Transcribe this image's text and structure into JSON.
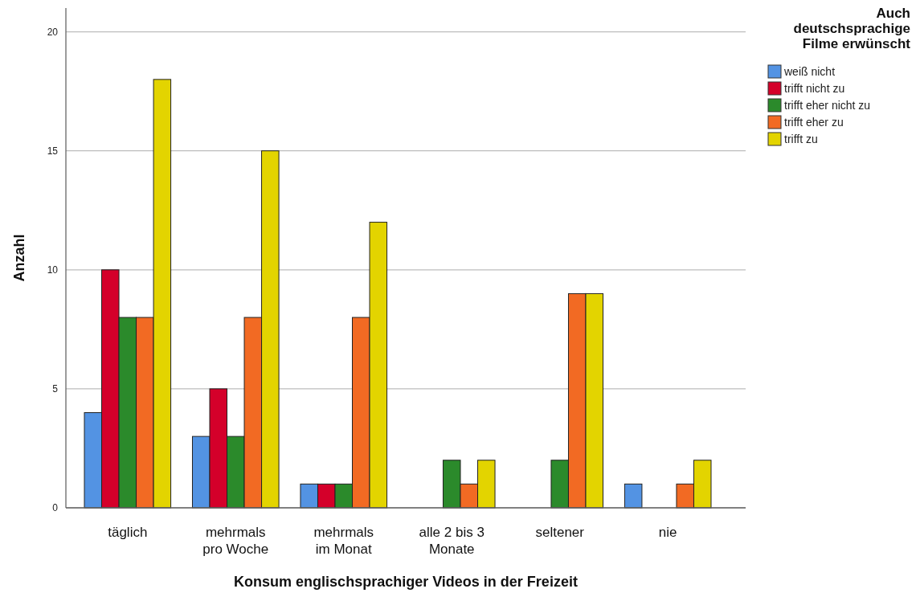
{
  "chart_data": {
    "type": "bar",
    "xlabel": "Konsum englischsprachiger Videos in der Freizeit",
    "ylabel": "Anzahl",
    "legend_title": "Auch deutschsprachige Filme erwünscht",
    "categories": [
      "täglich",
      "mehrmals pro Woche",
      "mehrmals im Monat",
      "alle 2 bis 3 Monate",
      "seltener",
      "nie"
    ],
    "series": [
      {
        "name": "weiß nicht",
        "color": "#5393e3",
        "values": [
          4,
          3,
          1,
          null,
          null,
          1
        ]
      },
      {
        "name": "trifft nicht zu",
        "color": "#d4002a",
        "values": [
          10,
          5,
          1,
          null,
          null,
          null
        ]
      },
      {
        "name": "trifft eher nicht zu",
        "color": "#2b8a2b",
        "values": [
          8,
          3,
          1,
          2,
          2,
          null
        ]
      },
      {
        "name": "trifft eher zu",
        "color": "#f26a23",
        "values": [
          8,
          8,
          8,
          1,
          9,
          1
        ]
      },
      {
        "name": "trifft zu",
        "color": "#e3d400",
        "values": [
          18,
          15,
          12,
          2,
          9,
          2
        ]
      }
    ],
    "ylim": [
      0,
      21
    ],
    "yticks": [
      0,
      5,
      10,
      15,
      20
    ],
    "grid": "y",
    "legend": "top right"
  }
}
